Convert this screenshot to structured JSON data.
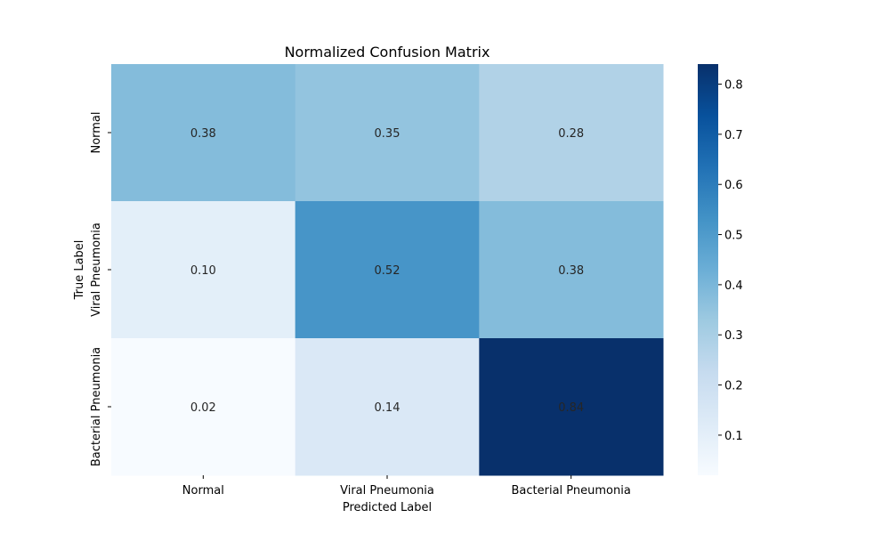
{
  "chart_data": {
    "type": "heatmap",
    "title": "Normalized Confusion Matrix",
    "xlabel": "Predicted Label",
    "ylabel": "True Label",
    "x_categories": [
      "Normal",
      "Viral Pneumonia",
      "Bacterial Pneumonia"
    ],
    "y_categories": [
      "Normal",
      "Viral Pneumonia",
      "Bacterial Pneumonia"
    ],
    "values": [
      [
        0.38,
        0.35,
        0.28
      ],
      [
        0.1,
        0.52,
        0.38
      ],
      [
        0.02,
        0.14,
        0.84
      ]
    ],
    "value_labels": [
      [
        "0.38",
        "0.35",
        "0.28"
      ],
      [
        "0.10",
        "0.52",
        "0.38"
      ],
      [
        "0.02",
        "0.14",
        "0.84"
      ]
    ],
    "colormap": "Blues",
    "colorbar": {
      "range": [
        0.02,
        0.84
      ],
      "ticks": [
        0.1,
        0.2,
        0.3,
        0.4,
        0.5,
        0.6,
        0.7,
        0.8
      ],
      "tick_labels": [
        "0.1",
        "0.2",
        "0.3",
        "0.4",
        "0.5",
        "0.6",
        "0.7",
        "0.8"
      ]
    }
  }
}
